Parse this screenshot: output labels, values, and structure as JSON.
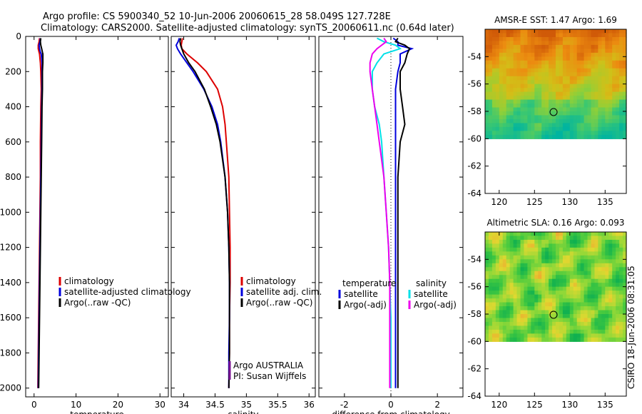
{
  "header": {
    "line1": "Argo profile: CS 5900340_52 10-Jun-2006 20060615_28 58.049S 127.728E",
    "line2": "Climatology: CARS2000. Satellite-adjusted climatology: synTS_20060611.nc (0.64d later)"
  },
  "credit": "CSIRO 18-Jun-2006 08:31:05",
  "colors": {
    "climatology": "#dd0000",
    "satellite": "#0000dd",
    "argo": "#000000",
    "sal_satellite": "#00e0e8",
    "sal_argo": "#ee00ee",
    "marker": "#000000"
  },
  "chart_data": [
    {
      "type": "line",
      "id": "temperature",
      "xlabel": "temperature",
      "ylabel": "",
      "xlim": [
        -2,
        32
      ],
      "ylim": [
        2050,
        0
      ],
      "xticks": [
        0,
        10,
        20,
        30
      ],
      "xtick_labels": [
        "0",
        "10",
        "20",
        "30"
      ],
      "yticks": [
        0,
        200,
        400,
        600,
        800,
        1000,
        1200,
        1400,
        1600,
        1800,
        2000
      ],
      "ytick_labels": [
        "0",
        "200",
        "400",
        "600",
        "800",
        "1000",
        "1200",
        "1400",
        "1600",
        "1800",
        "2000"
      ],
      "legend": {
        "position": "lower-right",
        "entries": [
          "climatology",
          "satellite-adjusted climatology",
          "Argo(..raw -QC)"
        ]
      },
      "series": [
        {
          "name": "climatology",
          "color": "#dd0000",
          "depth": [
            10,
            30,
            50,
            70,
            90,
            100,
            150,
            200,
            300,
            400,
            600,
            800,
            1000,
            1200,
            1400,
            1600,
            1800,
            2000
          ],
          "values": [
            1.3,
            1.2,
            1.0,
            1.0,
            1.2,
            1.3,
            1.5,
            1.6,
            1.7,
            1.6,
            1.5,
            1.5,
            1.4,
            1.3,
            1.2,
            1.1,
            1.0,
            0.9
          ]
        },
        {
          "name": "satellite-adjusted climatology",
          "color": "#0000dd",
          "depth": [
            10,
            30,
            50,
            70,
            90,
            100,
            150,
            200,
            300,
            400,
            600,
            800,
            1000,
            1200,
            1400,
            1600,
            1800,
            2000
          ],
          "values": [
            1.5,
            1.4,
            1.2,
            1.3,
            1.5,
            1.7,
            1.9,
            1.9,
            1.9,
            1.8,
            1.7,
            1.6,
            1.5,
            1.4,
            1.3,
            1.2,
            1.1,
            1.0
          ]
        },
        {
          "name": "Argo(..raw -QC)",
          "color": "#000000",
          "depth": [
            10,
            30,
            50,
            70,
            90,
            100,
            150,
            200,
            300,
            400,
            600,
            800,
            1000,
            1200,
            1400,
            1600,
            1800,
            2000
          ],
          "values": [
            1.6,
            1.5,
            1.6,
            1.8,
            2.0,
            2.1,
            2.1,
            2.0,
            2.0,
            1.9,
            1.8,
            1.7,
            1.6,
            1.5,
            1.4,
            1.3,
            1.2,
            1.1
          ]
        }
      ]
    },
    {
      "type": "line",
      "id": "salinity",
      "xlabel": "salinity",
      "ylabel": "",
      "xlim": [
        33.8,
        36.1
      ],
      "ylim": [
        2050,
        0
      ],
      "xticks": [
        34,
        34.5,
        35,
        35.5,
        36
      ],
      "xtick_labels": [
        "34",
        "34.5",
        "35",
        "35.5",
        "36"
      ],
      "legend": {
        "position": "lower-right",
        "entries": [
          "climatology",
          "satellite adj. clim.",
          "Argo(..raw -QC)"
        ]
      },
      "annotation": [
        "Argo AUSTRALIA",
        "PI: Susan Wijffels"
      ],
      "series": [
        {
          "name": "climatology",
          "color": "#dd0000",
          "depth": [
            10,
            30,
            50,
            70,
            100,
            150,
            200,
            300,
            400,
            500,
            600,
            800,
            1000,
            1200,
            1400,
            1600,
            1800,
            2000
          ],
          "values": [
            33.98,
            33.97,
            33.96,
            33.97,
            34.05,
            34.22,
            34.36,
            34.54,
            34.62,
            34.66,
            34.68,
            34.72,
            34.73,
            34.74,
            34.74,
            34.73,
            34.73,
            34.72
          ]
        },
        {
          "name": "satellite adj. clim.",
          "color": "#0000dd",
          "depth": [
            10,
            30,
            50,
            70,
            100,
            150,
            200,
            300,
            400,
            500,
            600,
            800,
            1000,
            1200,
            1400,
            1600,
            1800,
            2000
          ],
          "values": [
            33.93,
            33.91,
            33.88,
            33.9,
            33.95,
            34.05,
            34.15,
            34.32,
            34.45,
            34.54,
            34.59,
            34.66,
            34.7,
            34.72,
            34.73,
            34.73,
            34.72,
            34.72
          ]
        },
        {
          "name": "Argo(..raw -QC)",
          "color": "#000000",
          "depth": [
            10,
            30,
            50,
            70,
            100,
            150,
            200,
            300,
            400,
            500,
            600,
            800,
            1000,
            1200,
            1400,
            1600,
            1800,
            2000
          ],
          "values": [
            33.95,
            33.94,
            33.95,
            33.97,
            34.0,
            34.08,
            34.18,
            34.33,
            34.43,
            34.52,
            34.58,
            34.66,
            34.7,
            34.72,
            34.73,
            34.73,
            34.73,
            34.72
          ]
        }
      ]
    },
    {
      "type": "line",
      "id": "difference",
      "xlabel": "difference from climatology",
      "ylabel": "",
      "xlim": [
        -3.1,
        3.1
      ],
      "ylim": [
        2050,
        0
      ],
      "xticks": [
        -2,
        0,
        2
      ],
      "xtick_labels": [
        "-2",
        "0",
        "2"
      ],
      "legend": {
        "position": "lower-center",
        "groups": [
          {
            "title": "temperature",
            "entries": [
              "satellite",
              "Argo(-adj)"
            ]
          },
          {
            "title": "salinity",
            "entries": [
              "satellite",
              "Argo(-adj)"
            ]
          }
        ]
      },
      "series": [
        {
          "name": "temperature satellite",
          "color": "#0000dd",
          "depth": [
            10,
            30,
            50,
            70,
            100,
            150,
            200,
            300,
            400,
            600,
            800,
            1000,
            1200,
            1400,
            1600,
            1800,
            2000
          ],
          "values": [
            0.1,
            0.3,
            0.3,
            0.9,
            0.4,
            0.4,
            0.3,
            0.2,
            0.2,
            0.2,
            0.2,
            0.2,
            0.2,
            0.2,
            0.2,
            0.2,
            0.2
          ]
        },
        {
          "name": "temperature Argo(-adj)",
          "color": "#000000",
          "depth": [
            10,
            30,
            50,
            70,
            100,
            150,
            200,
            300,
            400,
            500,
            600,
            800,
            1000,
            1200,
            1400,
            1600,
            1800,
            2000
          ],
          "values": [
            0.3,
            0.2,
            0.6,
            0.8,
            0.7,
            0.6,
            0.4,
            0.4,
            0.5,
            0.6,
            0.4,
            0.3,
            0.3,
            0.3,
            0.3,
            0.3,
            0.3,
            0.3
          ]
        },
        {
          "name": "salinity satellite",
          "color": "#00e0e8",
          "depth": [
            10,
            30,
            50,
            70,
            100,
            150,
            200,
            300,
            400,
            500,
            600,
            800,
            1000,
            1200,
            1400,
            1600,
            1800,
            2000
          ],
          "values": [
            -0.6,
            -0.3,
            0.2,
            0.4,
            -0.3,
            -0.6,
            -0.8,
            -0.8,
            -0.7,
            -0.5,
            -0.4,
            -0.3,
            -0.2,
            -0.1,
            -0.05,
            0.0,
            0.0,
            0.0
          ]
        },
        {
          "name": "salinity Argo(-adj)",
          "color": "#ee00ee",
          "depth": [
            10,
            30,
            50,
            70,
            100,
            150,
            200,
            300,
            400,
            500,
            600,
            800,
            1000,
            1200,
            1400,
            1600,
            1800,
            2000
          ],
          "values": [
            -0.3,
            -0.2,
            -0.4,
            -0.6,
            -0.8,
            -0.9,
            -0.9,
            -0.8,
            -0.7,
            -0.6,
            -0.5,
            -0.3,
            -0.2,
            -0.1,
            -0.05,
            -0.05,
            -0.05,
            -0.05
          ]
        }
      ]
    },
    {
      "type": "heatmap",
      "id": "sst-map",
      "title": "AMSR-E SST: 1.47 Argo: 1.69",
      "xlim": [
        118,
        138
      ],
      "ylim": [
        -64,
        -52
      ],
      "xticks": [
        120,
        125,
        130,
        135
      ],
      "xtick_labels": [
        "120",
        "125",
        "130",
        "135"
      ],
      "yticks": [
        -54,
        -56,
        -58,
        -60,
        -62,
        -64
      ],
      "ytick_labels": [
        "-54",
        "-56",
        "-58",
        "-60",
        "-62",
        "-64"
      ],
      "data_extent_lat": [
        -60,
        -52
      ],
      "marker": {
        "lon": 127.7,
        "lat": -58.05
      },
      "colormap": [
        "#00b4a0",
        "#3cc870",
        "#90d038",
        "#d2c018",
        "#ec8c10",
        "#d05a08"
      ]
    },
    {
      "type": "heatmap",
      "id": "sla-map",
      "title": "Altimetric SLA: 0.16 Argo: 0.093",
      "xlim": [
        118,
        138
      ],
      "ylim": [
        -64,
        -52
      ],
      "xticks": [
        120,
        125,
        130,
        135
      ],
      "xtick_labels": [
        "120",
        "125",
        "130",
        "135"
      ],
      "yticks": [
        -54,
        -56,
        -58,
        -60,
        -62,
        -64
      ],
      "ytick_labels": [
        "-54",
        "-56",
        "-58",
        "-60",
        "-62",
        "-64"
      ],
      "data_extent_lat": [
        -60,
        -52
      ],
      "marker": {
        "lon": 127.7,
        "lat": -58.05
      },
      "colormap": [
        "#10b050",
        "#40c840",
        "#90d838",
        "#e0d830",
        "#f0a030",
        "#e06030"
      ]
    }
  ]
}
